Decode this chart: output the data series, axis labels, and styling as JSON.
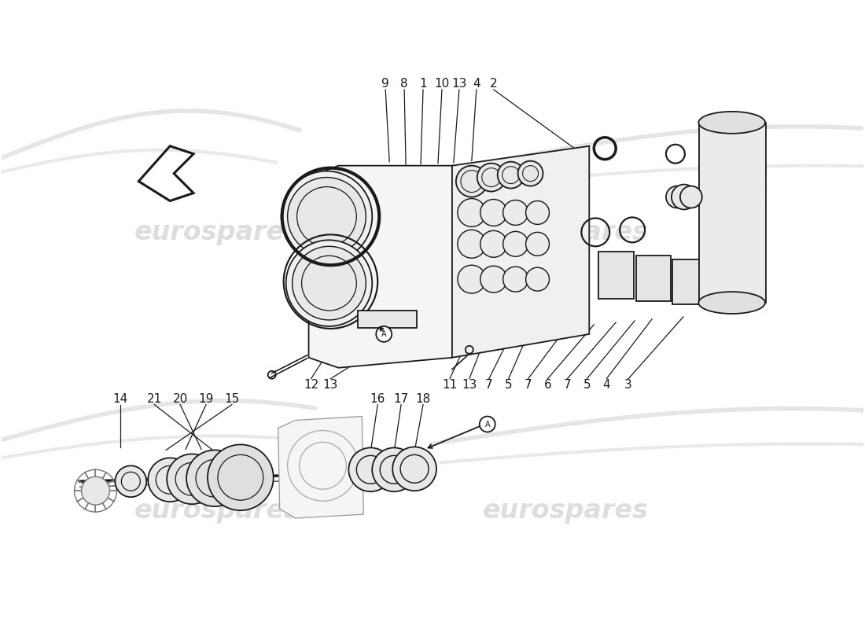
{
  "bg_color": "#ffffff",
  "line_color": "#1a1a1a",
  "line_width": 1.3,
  "figsize": [
    11.0,
    8.0
  ],
  "dpi": 100,
  "wm_color": "#d8d8d8",
  "wm_fs": 24,
  "label_fs": 11,
  "top_callouts": [
    [
      "9",
      490,
      105,
      495,
      205
    ],
    [
      "8",
      514,
      105,
      516,
      210
    ],
    [
      "1",
      538,
      105,
      535,
      208
    ],
    [
      "10",
      562,
      105,
      557,
      207
    ],
    [
      "13",
      584,
      105,
      577,
      206
    ],
    [
      "4",
      606,
      105,
      600,
      204
    ],
    [
      "2",
      628,
      105,
      745,
      198
    ]
  ],
  "bot_callouts": [
    [
      "12",
      395,
      490,
      427,
      432
    ],
    [
      "13",
      420,
      490,
      507,
      427
    ],
    [
      "11",
      572,
      490,
      597,
      428
    ],
    [
      "13",
      597,
      490,
      618,
      428
    ],
    [
      "7",
      622,
      490,
      652,
      422
    ],
    [
      "5",
      647,
      490,
      675,
      418
    ],
    [
      "7",
      672,
      490,
      722,
      415
    ],
    [
      "6",
      697,
      490,
      756,
      413
    ],
    [
      "7",
      722,
      490,
      784,
      410
    ],
    [
      "5",
      747,
      490,
      808,
      408
    ],
    [
      "4",
      772,
      490,
      830,
      406
    ],
    [
      "3",
      800,
      490,
      870,
      403
    ]
  ],
  "lower_left_labels": [
    [
      "14",
      152,
      508,
      152,
      570
    ],
    [
      "21",
      195,
      508,
      272,
      575
    ],
    [
      "20",
      228,
      508,
      255,
      572
    ],
    [
      "19",
      261,
      508,
      235,
      572
    ],
    [
      "15",
      294,
      508,
      210,
      573
    ]
  ],
  "lower_mid_labels": [
    [
      "16",
      480,
      508,
      471,
      575
    ],
    [
      "17",
      510,
      508,
      501,
      575
    ],
    [
      "18",
      538,
      508,
      527,
      575
    ]
  ]
}
